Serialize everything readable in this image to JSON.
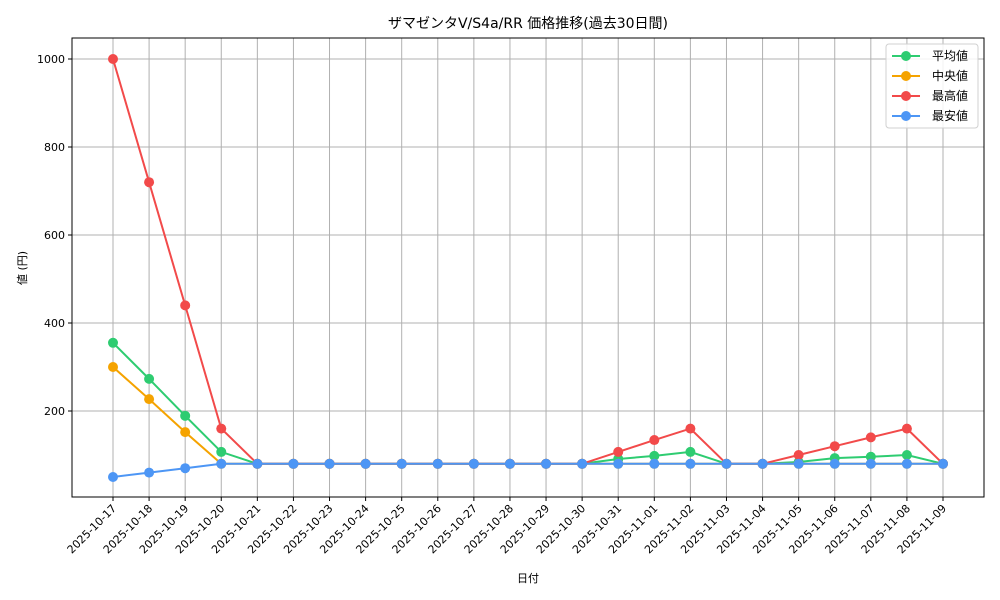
{
  "chart_data": {
    "type": "line",
    "title": "ザマゼンタV/S4a/RR 価格推移(過去30日間)",
    "xlabel": "日付",
    "ylabel": "値 (円)",
    "ylim": [
      0,
      1050
    ],
    "yticks": [
      200,
      400,
      600,
      800,
      1000
    ],
    "grid": true,
    "legend_position": "upper right",
    "categories": [
      "2025-10-17",
      "2025-10-18",
      "2025-10-19",
      "2025-10-20",
      "2025-10-21",
      "2025-10-22",
      "2025-10-23",
      "2025-10-24",
      "2025-10-25",
      "2025-10-26",
      "2025-10-27",
      "2025-10-28",
      "2025-10-29",
      "2025-10-30",
      "2025-10-31",
      "2025-11-01",
      "2025-11-02",
      "2025-11-03",
      "2025-11-04",
      "2025-11-05",
      "2025-11-06",
      "2025-11-07",
      "2025-11-08",
      "2025-11-09"
    ],
    "series": [
      {
        "name": "平均値",
        "color": "#2ecc71",
        "values": [
          355,
          273,
          189,
          107,
          80,
          80,
          80,
          80,
          80,
          80,
          80,
          80,
          80,
          80,
          91,
          98,
          107,
          80,
          80,
          84,
          93,
          96,
          100,
          80
        ]
      },
      {
        "name": "中央値",
        "color": "#f5a300",
        "values": [
          300,
          227,
          152,
          80,
          80,
          80,
          80,
          80,
          80,
          80,
          80,
          80,
          80,
          80,
          80,
          80,
          80,
          80,
          80,
          80,
          80,
          80,
          80,
          80
        ]
      },
      {
        "name": "最高値",
        "color": "#f24a4a",
        "values": [
          1000,
          720,
          440,
          160,
          80,
          80,
          80,
          80,
          80,
          80,
          80,
          80,
          80,
          80,
          107,
          134,
          160,
          80,
          80,
          100,
          120,
          140,
          160,
          80
        ]
      },
      {
        "name": "最安値",
        "color": "#4d96f5",
        "values": [
          50,
          60,
          70,
          80,
          80,
          80,
          80,
          80,
          80,
          80,
          80,
          80,
          80,
          80,
          80,
          80,
          80,
          80,
          80,
          80,
          80,
          80,
          80,
          80
        ]
      }
    ]
  }
}
